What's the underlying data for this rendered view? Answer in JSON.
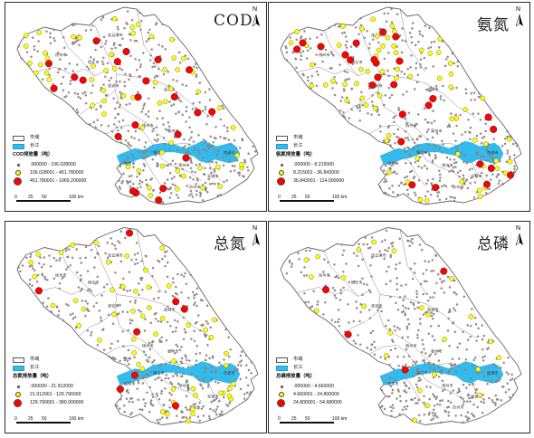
{
  "panels": [
    {
      "id": "cod",
      "title": "COD",
      "legend_title": "COD排放量（吨）",
      "classes": [
        ".000000 - 106.028000",
        "106.028001 - 451.780000",
        "451.780001 - 1969.200000"
      ],
      "colors": [
        "#9e8f8f",
        "#ffff00",
        "#ff0000"
      ],
      "large_count": 22,
      "mid_count": 60
    },
    {
      "id": "ammonia",
      "title": "氨氮",
      "legend_title": "氨氮排放量（吨）",
      "classes": [
        ".000000 - 8.215000",
        "8.215001 - 36.843000",
        "36.843001 - 114.000000"
      ],
      "colors": [
        "#9e8f8f",
        "#ffff00",
        "#ff0000"
      ],
      "large_count": 26,
      "mid_count": 66
    },
    {
      "id": "tn",
      "title": "总氮",
      "legend_title": "总氮排放量（吨）",
      "classes": [
        ".000000 - 21.912000",
        "21.912001 - 129.790000",
        "129.790001 - 380.000000"
      ],
      "colors": [
        "#9e8f8f",
        "#ffff00",
        "#ff0000"
      ],
      "large_count": 8,
      "mid_count": 52
    },
    {
      "id": "tp",
      "title": "总磷",
      "legend_title": "总磷排放量（吨）",
      "classes": [
        ".000000 - 4.660000",
        "4.660001 - 24.800000",
        "24.800001 - 54.680000"
      ],
      "colors": [
        "#9e8f8f",
        "#ffff00",
        "#ff0000"
      ],
      "large_count": 4,
      "mid_count": 24
    }
  ],
  "common": {
    "legend_city": "市域",
    "legend_river": "长江",
    "north_label": "N",
    "scale_ticks": [
      "0",
      "25",
      "50",
      "100 km"
    ],
    "city_labels": [
      "连云港市",
      "宿迁市",
      "徐州市",
      "淮安市",
      "盐城市",
      "扬州市",
      "泰州市",
      "南京市",
      "镇江市",
      "常州市",
      "无锡市",
      "苏州市",
      "南通市"
    ],
    "colors": {
      "river": "#33bbee",
      "boundary": "#888888",
      "city_fill": "#ffffff",
      "point": "#9e8f8f"
    }
  }
}
